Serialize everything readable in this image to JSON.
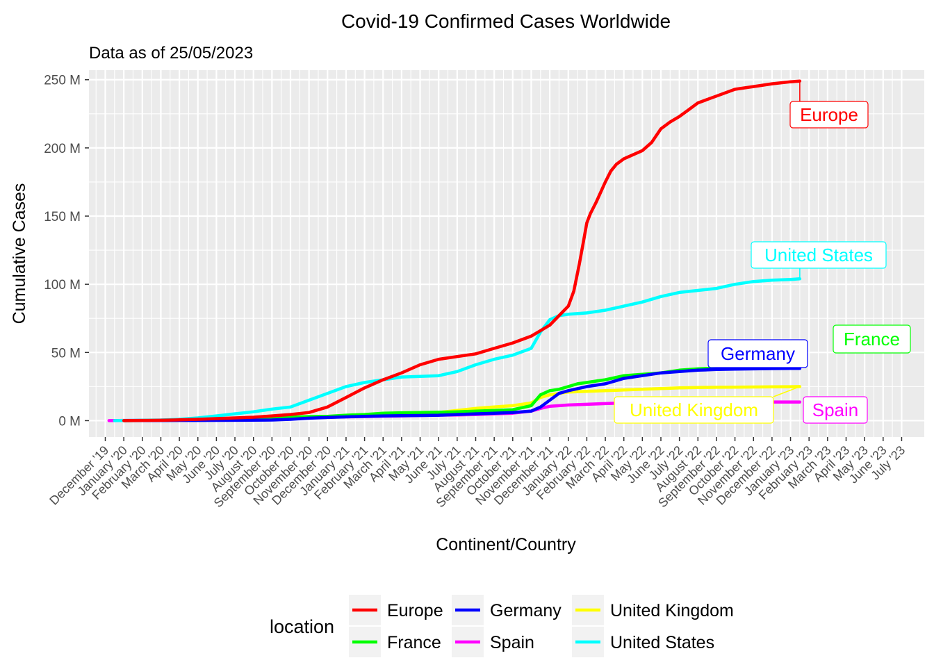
{
  "chart_data": {
    "type": "line",
    "title": "Covid-19 Confirmed Cases Worldwide",
    "subtitle": "Data as of 25/05/2023",
    "xlabel": "Continent/Country",
    "ylabel": "Cumulative Cases",
    "ylim": [
      -12,
      257
    ],
    "y_ticks": [
      {
        "value": 0,
        "label": "0 M"
      },
      {
        "value": 50,
        "label": "50 M"
      },
      {
        "value": 100,
        "label": "100 M"
      },
      {
        "value": 150,
        "label": "150 M"
      },
      {
        "value": 200,
        "label": "200 M"
      },
      {
        "value": 250,
        "label": "250 M"
      }
    ],
    "x_ticks": [
      "December '19",
      "January '20",
      "February '20",
      "March '20",
      "April '20",
      "May '20",
      "June '20",
      "July '20",
      "August '20",
      "September '20",
      "October '20",
      "November '20",
      "December '20",
      "January '21",
      "February '21",
      "March '21",
      "April '21",
      "May '21",
      "June '21",
      "July '21",
      "August '21",
      "September '21",
      "October '21",
      "November '21",
      "December '21",
      "January '22",
      "February '22",
      "March '22",
      "April '22",
      "May '22",
      "June '22",
      "July '22",
      "August '22",
      "September '22",
      "October '22",
      "November '22",
      "December '22",
      "January '23",
      "February '23",
      "March '23",
      "April '23",
      "May '23",
      "June '23",
      "July '23"
    ],
    "grid": true,
    "legend": {
      "title": "location",
      "position": "bottom",
      "columns": [
        [
          "Europe",
          "France"
        ],
        [
          "Germany",
          "Spain"
        ],
        [
          "United Kingdom",
          "United States"
        ]
      ]
    },
    "series": [
      {
        "name": "Europe",
        "color": "#FF0000",
        "points": [
          [
            1,
            0
          ],
          [
            3,
            0.3
          ],
          [
            4,
            0.6
          ],
          [
            5,
            1
          ],
          [
            6,
            1.5
          ],
          [
            7,
            2
          ],
          [
            8,
            2.5
          ],
          [
            9,
            3.5
          ],
          [
            10,
            4.5
          ],
          [
            11,
            6
          ],
          [
            12,
            10
          ],
          [
            13,
            17
          ],
          [
            14,
            24
          ],
          [
            15,
            30
          ],
          [
            16,
            35
          ],
          [
            17,
            41
          ],
          [
            18,
            45
          ],
          [
            19,
            47
          ],
          [
            20,
            49
          ],
          [
            21,
            53
          ],
          [
            22,
            57
          ],
          [
            23,
            62
          ],
          [
            24,
            70
          ],
          [
            25,
            84
          ],
          [
            25.3,
            95
          ],
          [
            25.6,
            115
          ],
          [
            25.8,
            130
          ],
          [
            26,
            145
          ],
          [
            26.2,
            152
          ],
          [
            26.5,
            160
          ],
          [
            27,
            175
          ],
          [
            27.3,
            183
          ],
          [
            27.6,
            188
          ],
          [
            28,
            192
          ],
          [
            29,
            198
          ],
          [
            29.5,
            204
          ],
          [
            30,
            214
          ],
          [
            30.5,
            219
          ],
          [
            31,
            223
          ],
          [
            31.5,
            228
          ],
          [
            32,
            233
          ],
          [
            33,
            238
          ],
          [
            34,
            243
          ],
          [
            35,
            245
          ],
          [
            36,
            247
          ],
          [
            37,
            248.5
          ],
          [
            37.5,
            249
          ]
        ],
        "label": "Europe"
      },
      {
        "name": "United States",
        "color": "#00FFFF",
        "points": [
          [
            0.5,
            0
          ],
          [
            3,
            0.5
          ],
          [
            4,
            1
          ],
          [
            5,
            2
          ],
          [
            6,
            3.5
          ],
          [
            7,
            5
          ],
          [
            8,
            6.5
          ],
          [
            9,
            8.5
          ],
          [
            10,
            10
          ],
          [
            11,
            15
          ],
          [
            12,
            20
          ],
          [
            13,
            25
          ],
          [
            14,
            28
          ],
          [
            15,
            30
          ],
          [
            16,
            32
          ],
          [
            17,
            32.5
          ],
          [
            18,
            33
          ],
          [
            19,
            36
          ],
          [
            20,
            41
          ],
          [
            21,
            45
          ],
          [
            22,
            48
          ],
          [
            23,
            53
          ],
          [
            23.5,
            65
          ],
          [
            24,
            74
          ],
          [
            24.5,
            77
          ],
          [
            25,
            78
          ],
          [
            26,
            79
          ],
          [
            27,
            81
          ],
          [
            28,
            84
          ],
          [
            29,
            87
          ],
          [
            30,
            91
          ],
          [
            31,
            94
          ],
          [
            32,
            95.5
          ],
          [
            33,
            97
          ],
          [
            34,
            100
          ],
          [
            35,
            102
          ],
          [
            36,
            103
          ],
          [
            37,
            103.5
          ],
          [
            37.5,
            104
          ]
        ],
        "label": "United States"
      },
      {
        "name": "France",
        "color": "#00FF00",
        "points": [
          [
            1,
            0
          ],
          [
            3,
            0.2
          ],
          [
            5,
            0.5
          ],
          [
            7,
            0.8
          ],
          [
            9,
            1.5
          ],
          [
            10,
            2.5
          ],
          [
            11,
            3
          ],
          [
            12,
            3.2
          ],
          [
            13,
            4
          ],
          [
            14,
            4.5
          ],
          [
            15,
            5.5
          ],
          [
            16,
            5.8
          ],
          [
            17,
            6
          ],
          [
            18,
            6.2
          ],
          [
            19,
            6.5
          ],
          [
            20,
            7
          ],
          [
            21,
            7.5
          ],
          [
            22,
            8
          ],
          [
            23,
            11
          ],
          [
            23.5,
            19
          ],
          [
            24,
            22
          ],
          [
            24.5,
            23
          ],
          [
            25,
            25
          ],
          [
            25.5,
            27
          ],
          [
            26,
            28
          ],
          [
            26.5,
            29
          ],
          [
            27,
            30
          ],
          [
            28,
            33
          ],
          [
            29,
            34
          ],
          [
            30,
            35
          ],
          [
            31,
            37
          ],
          [
            32,
            38
          ],
          [
            33,
            38.5
          ],
          [
            34,
            38.8
          ],
          [
            35,
            39
          ],
          [
            36,
            39
          ],
          [
            37,
            39
          ],
          [
            37.5,
            39
          ]
        ],
        "label": "France"
      },
      {
        "name": "Germany",
        "color": "#0000FF",
        "points": [
          [
            1,
            0
          ],
          [
            3,
            0.1
          ],
          [
            5,
            0.2
          ],
          [
            7,
            0.3
          ],
          [
            9,
            0.5
          ],
          [
            10,
            1
          ],
          [
            11,
            1.8
          ],
          [
            12,
            2.3
          ],
          [
            13,
            2.8
          ],
          [
            14,
            3.2
          ],
          [
            15,
            3.5
          ],
          [
            16,
            3.7
          ],
          [
            17,
            3.8
          ],
          [
            18,
            4
          ],
          [
            19,
            4.5
          ],
          [
            20,
            5
          ],
          [
            21,
            5.5
          ],
          [
            22,
            6
          ],
          [
            23,
            7
          ],
          [
            23.5,
            10
          ],
          [
            24,
            15
          ],
          [
            24.5,
            20
          ],
          [
            25,
            22
          ],
          [
            26,
            25
          ],
          [
            27,
            27
          ],
          [
            28,
            31
          ],
          [
            29,
            33
          ],
          [
            30,
            35
          ],
          [
            31,
            36
          ],
          [
            32,
            37
          ],
          [
            33,
            37.5
          ],
          [
            34,
            37.8
          ],
          [
            35,
            38
          ],
          [
            36,
            38.2
          ],
          [
            37,
            38.3
          ],
          [
            37.5,
            38.3
          ]
        ],
        "label": "Germany"
      },
      {
        "name": "Spain",
        "color": "#FF00FF",
        "points": [
          [
            0.2,
            0
          ],
          [
            2,
            0.3
          ],
          [
            4,
            0.5
          ],
          [
            6,
            0.8
          ],
          [
            8,
            1
          ],
          [
            9,
            1.5
          ],
          [
            10,
            1.8
          ],
          [
            11,
            2
          ],
          [
            12,
            2.5
          ],
          [
            13,
            2.8
          ],
          [
            14,
            3
          ],
          [
            15,
            3.3
          ],
          [
            16,
            3.5
          ],
          [
            17,
            3.8
          ],
          [
            18,
            4
          ],
          [
            19,
            4.2
          ],
          [
            20,
            4.5
          ],
          [
            21,
            5
          ],
          [
            22,
            5.5
          ],
          [
            23,
            7
          ],
          [
            23.5,
            9
          ],
          [
            24,
            10.5
          ],
          [
            24.5,
            11
          ],
          [
            25,
            11.5
          ],
          [
            26,
            12
          ],
          [
            27,
            12.5
          ],
          [
            28,
            13
          ],
          [
            30,
            13.3
          ],
          [
            32,
            13.5
          ],
          [
            34,
            13.6
          ],
          [
            36,
            13.7
          ],
          [
            37.5,
            13.7
          ]
        ],
        "label": "Spain"
      },
      {
        "name": "United Kingdom",
        "color": "#FFFF00",
        "points": [
          [
            1,
            0
          ],
          [
            3,
            0.3
          ],
          [
            5,
            0.6
          ],
          [
            7,
            1
          ],
          [
            9,
            1.5
          ],
          [
            10,
            2
          ],
          [
            11,
            2.5
          ],
          [
            12,
            3
          ],
          [
            13,
            3.5
          ],
          [
            14,
            3.8
          ],
          [
            15,
            4
          ],
          [
            16,
            4.5
          ],
          [
            17,
            5
          ],
          [
            18,
            6
          ],
          [
            19,
            7.5
          ],
          [
            20,
            9
          ],
          [
            21,
            10
          ],
          [
            22,
            11
          ],
          [
            23,
            13
          ],
          [
            23.5,
            17
          ],
          [
            24,
            19
          ],
          [
            24.5,
            20
          ],
          [
            25,
            21
          ],
          [
            26,
            21.5
          ],
          [
            27,
            22
          ],
          [
            28,
            22.5
          ],
          [
            29,
            23
          ],
          [
            30,
            23.5
          ],
          [
            31,
            24
          ],
          [
            32,
            24.3
          ],
          [
            33,
            24.5
          ],
          [
            34,
            24.6
          ],
          [
            35,
            24.7
          ],
          [
            36,
            24.8
          ],
          [
            37,
            24.9
          ],
          [
            37.5,
            25
          ]
        ],
        "label": "United Kingdom"
      }
    ]
  }
}
